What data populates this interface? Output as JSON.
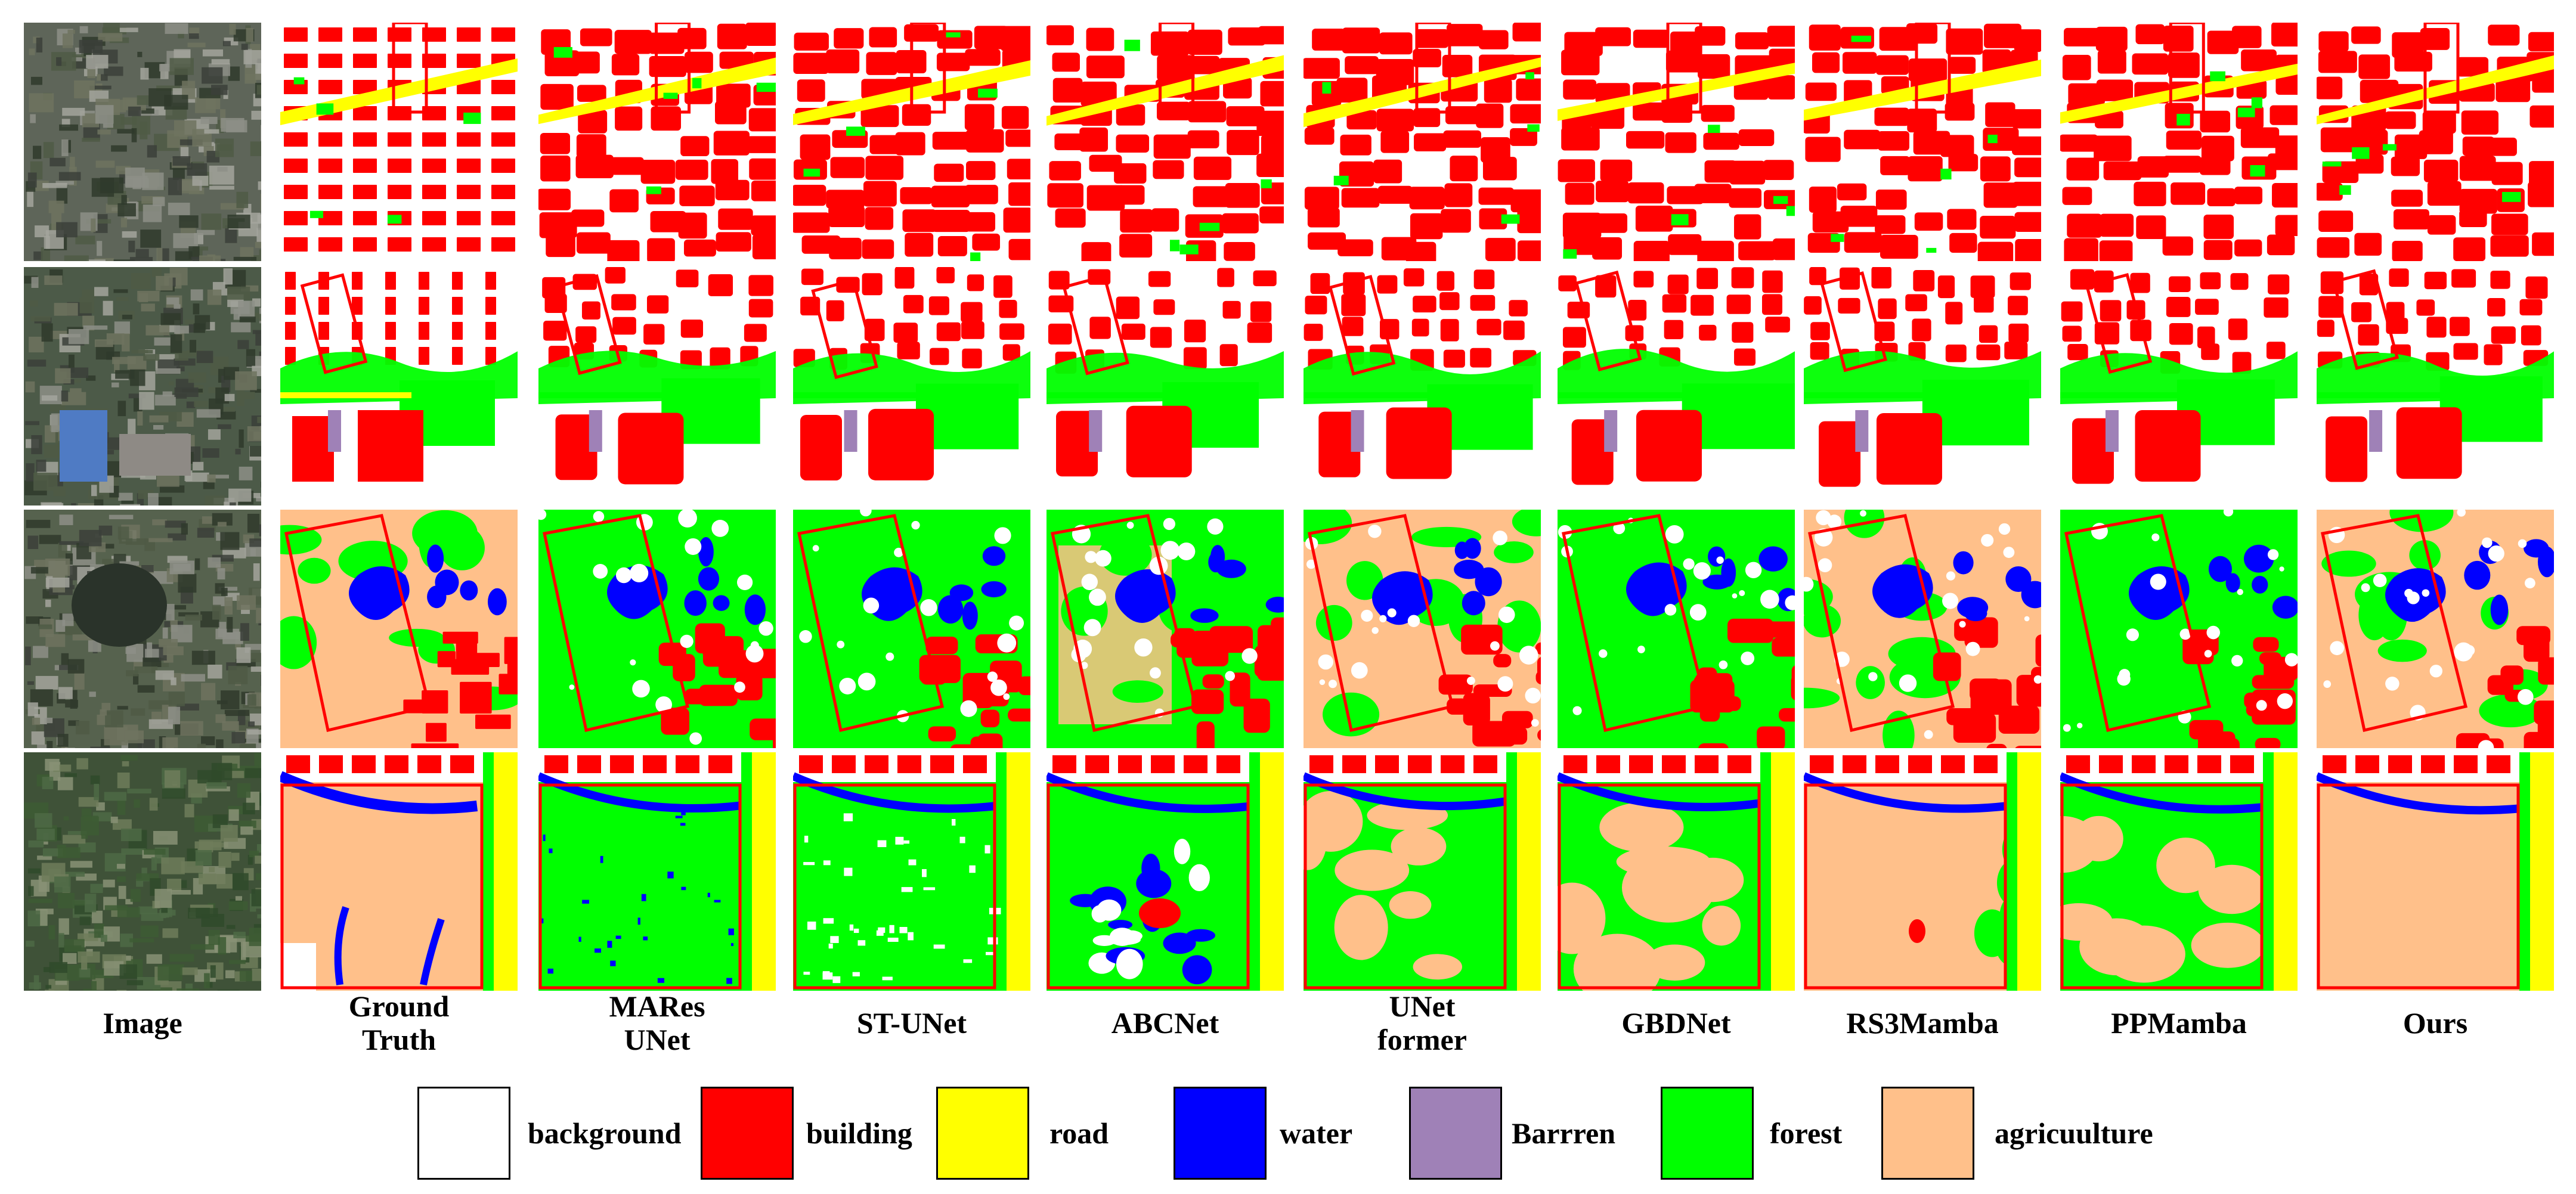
{
  "columns": [
    {
      "key": "image",
      "label": "Image"
    },
    {
      "key": "gt",
      "label": "Ground\nTruth"
    },
    {
      "key": "mares",
      "label": "MARes\nUNet"
    },
    {
      "key": "stunet",
      "label": "ST-UNet"
    },
    {
      "key": "abcnet",
      "label": "ABCNet"
    },
    {
      "key": "unetformer",
      "label": "UNet\nformer"
    },
    {
      "key": "gbdnet",
      "label": "GBDNet"
    },
    {
      "key": "rs3mamba",
      "label": "RS3Mamba"
    },
    {
      "key": "ppmamba",
      "label": "PPMamba"
    },
    {
      "key": "ours",
      "label": "Ours"
    }
  ],
  "legend": [
    {
      "key": "background",
      "label": "background",
      "color": "#ffffff"
    },
    {
      "key": "building",
      "label": "building",
      "color": "#ff0000"
    },
    {
      "key": "road",
      "label": "road",
      "color": "#ffff00"
    },
    {
      "key": "water",
      "label": "water",
      "color": "#0000ff"
    },
    {
      "key": "barren",
      "label": "Barrren",
      "color": "#9f81b7"
    },
    {
      "key": "forest",
      "label": "forest",
      "color": "#00ff00"
    },
    {
      "key": "agriculture",
      "label": "agricuulture",
      "color": "#ffc08a"
    }
  ],
  "highlight_color": "#ff0000"
}
